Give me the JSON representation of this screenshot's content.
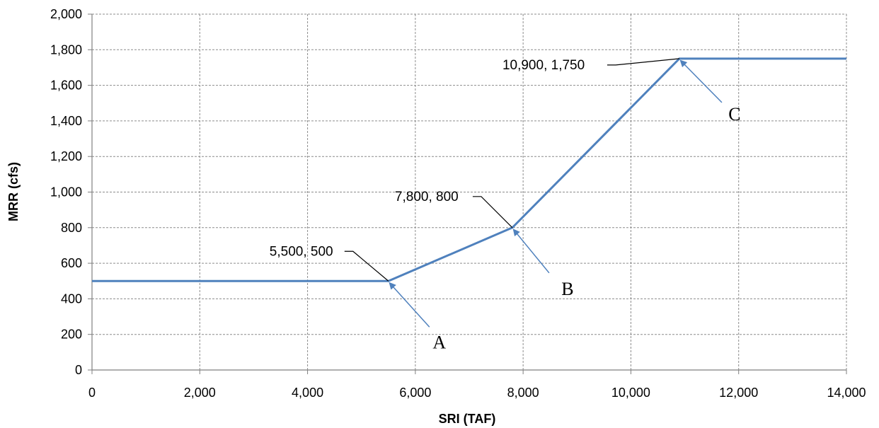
{
  "chart_data": {
    "type": "line",
    "xlabel": "SRI (TAF)",
    "ylabel": "MRR (cfs)",
    "xlim": [
      0,
      14000
    ],
    "ylim": [
      0,
      2000
    ],
    "x_ticks": [
      "0",
      "2,000",
      "4,000",
      "6,000",
      "8,000",
      "10,000",
      "12,000",
      "14,000"
    ],
    "y_ticks": [
      "0",
      "200",
      "400",
      "600",
      "800",
      "1,000",
      "1,200",
      "1,400",
      "1,600",
      "1,800",
      "2,000"
    ],
    "grid": true,
    "series": [
      {
        "x": [
          0,
          5500,
          7800,
          10900,
          14000
        ],
        "y": [
          500,
          500,
          800,
          1750,
          1750
        ],
        "color": "#4F81BD"
      }
    ],
    "annotations": [
      {
        "text": "5,500, 500",
        "letter": "A",
        "x": 5500,
        "y": 500
      },
      {
        "text": "7,800, 800",
        "letter": "B",
        "x": 7800,
        "y": 800
      },
      {
        "text": "10,900, 1,750",
        "letter": "C",
        "x": 10900,
        "y": 1750
      }
    ]
  }
}
